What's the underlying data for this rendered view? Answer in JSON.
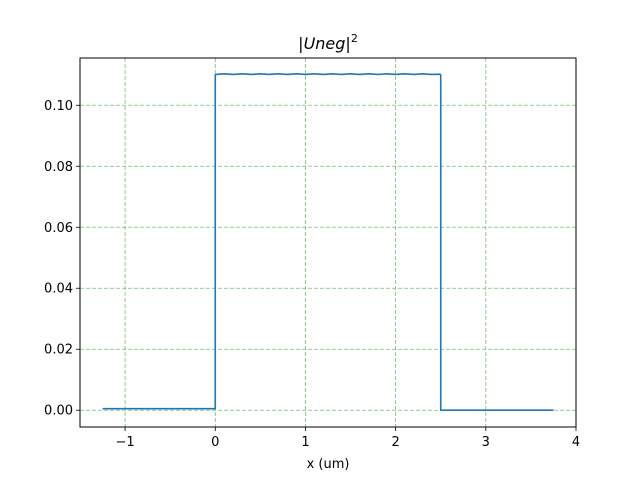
{
  "chart_data": {
    "type": "line",
    "title": "|Uneg|²",
    "title_parts": {
      "left_bar": "|",
      "var": "Uneg",
      "right_bar": "|",
      "sup": "2"
    },
    "xlabel": "x (um)",
    "ylabel": "",
    "xlim": [
      -1.5,
      4.0
    ],
    "ylim": [
      -0.0055,
      0.1155
    ],
    "xticks": [
      -1,
      0,
      1,
      2,
      3,
      4
    ],
    "xtick_labels": [
      "−1",
      "0",
      "1",
      "2",
      "3",
      "4"
    ],
    "yticks": [
      0.0,
      0.02,
      0.04,
      0.06,
      0.08,
      0.1
    ],
    "ytick_labels": [
      "0.00",
      "0.02",
      "0.04",
      "0.06",
      "0.08",
      "0.10"
    ],
    "grid": true,
    "grid_color": "#4caf50",
    "line_color": "#1f77b4",
    "legend": "none",
    "series": [
      {
        "x": [
          -1.25,
          -0.5,
          -0.01,
          0.0,
          0.0,
          0.01,
          0.1,
          0.2,
          0.3,
          0.4,
          0.5,
          0.6,
          0.7,
          0.8,
          0.9,
          1.0,
          1.1,
          1.2,
          1.3,
          1.4,
          1.5,
          1.6,
          1.7,
          1.8,
          1.9,
          2.0,
          2.1,
          2.2,
          2.3,
          2.4,
          2.49,
          2.5,
          2.5,
          2.51,
          3.0,
          3.75
        ],
        "y": [
          0.0005,
          0.0005,
          0.0005,
          0.0005,
          0.11,
          0.1101,
          0.1103,
          0.1101,
          0.1103,
          0.1101,
          0.1103,
          0.1101,
          0.1103,
          0.1101,
          0.1103,
          0.1101,
          0.1103,
          0.1101,
          0.1103,
          0.1101,
          0.1103,
          0.1101,
          0.1103,
          0.1101,
          0.1103,
          0.1101,
          0.1103,
          0.1101,
          0.1103,
          0.1101,
          0.1102,
          0.11,
          0.0,
          0.0,
          0.0,
          0.0
        ]
      }
    ]
  }
}
